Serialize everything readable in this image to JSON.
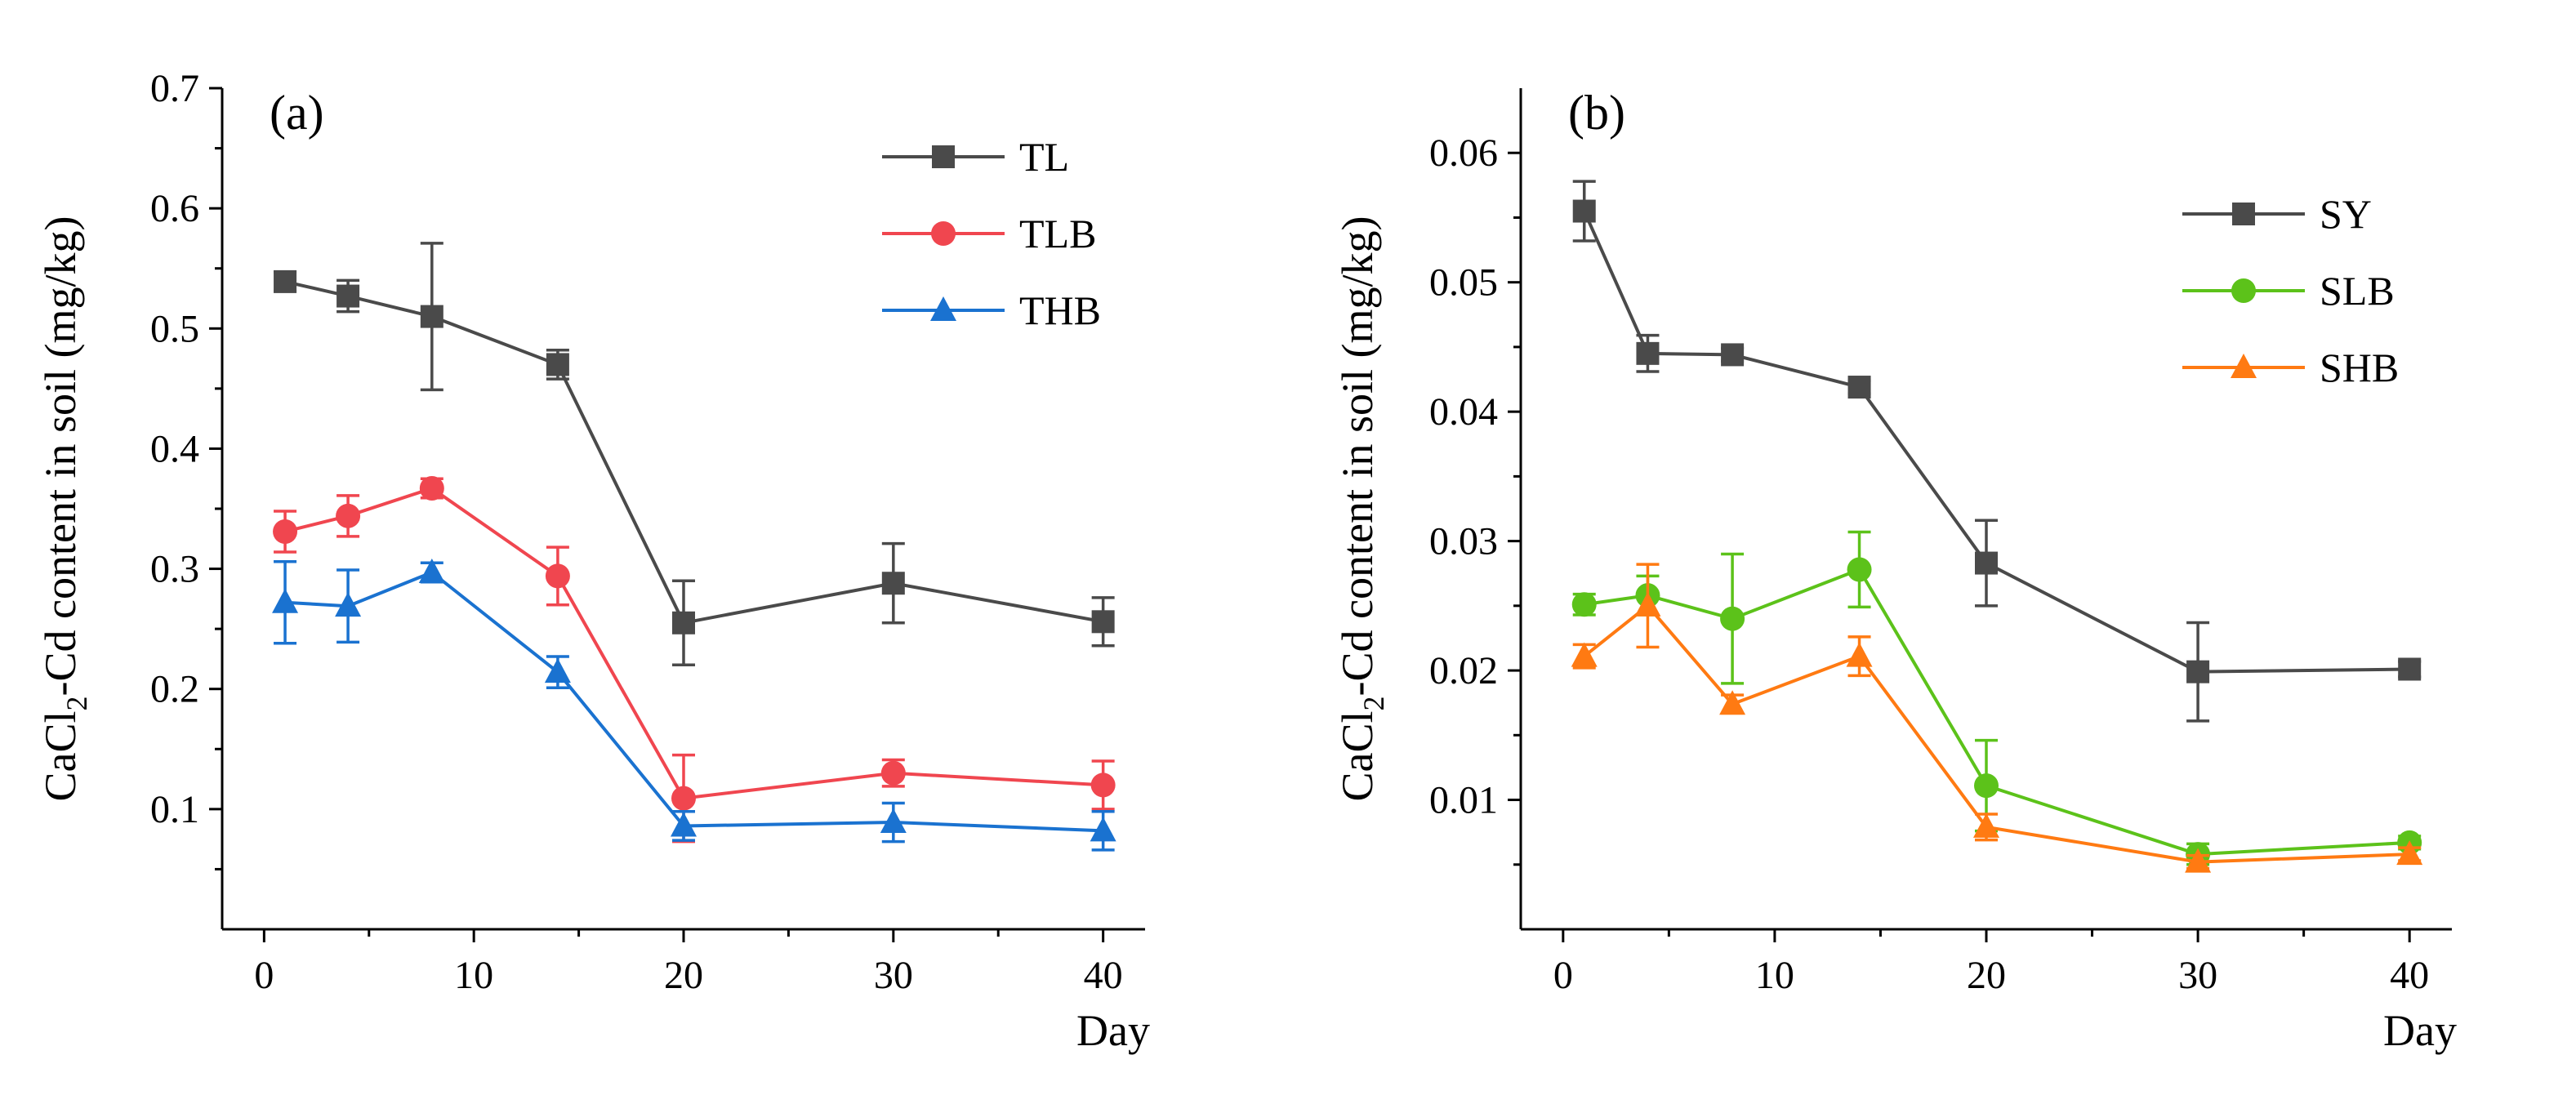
{
  "chart_data": [
    {
      "type": "line",
      "panel": "(a)",
      "xlabel": "Day",
      "ylabel": {
        "pre": "CaCl",
        "sub": "2",
        "post": "-Cd content in soil (mg/kg)"
      },
      "xlim": [
        -2,
        42
      ],
      "ylim": [
        0.0,
        0.7
      ],
      "xticks": [
        0,
        10,
        20,
        30,
        40
      ],
      "yticks": [
        0.1,
        0.2,
        0.3,
        0.4,
        0.5,
        0.6,
        0.7
      ],
      "minor_yticks": [
        0.05,
        0.15,
        0.25,
        0.35,
        0.45,
        0.55,
        0.65
      ],
      "minor_xticks": [
        5,
        15,
        25,
        35
      ],
      "ytick_labels": [
        "0.1",
        "0.2",
        "0.3",
        "0.4",
        "0.5",
        "0.6",
        "0.7"
      ],
      "xtick_labels": [
        "0",
        "10",
        "20",
        "30",
        "40"
      ],
      "legend_position": "top-right",
      "x": [
        1,
        4,
        8,
        14,
        20,
        30,
        40
      ],
      "series": [
        {
          "name": "TL",
          "color": "#4a4a4a",
          "marker": "square",
          "values": [
            0.539,
            0.527,
            0.51,
            0.47,
            0.255,
            0.288,
            0.256
          ],
          "errors": [
            0.008,
            0.013,
            0.061,
            0.012,
            0.035,
            0.033,
            0.02
          ]
        },
        {
          "name": "TLB",
          "color": "#f0464f",
          "marker": "circle",
          "values": [
            0.331,
            0.344,
            0.367,
            0.294,
            0.109,
            0.13,
            0.12
          ],
          "errors": [
            0.017,
            0.017,
            0.008,
            0.024,
            0.036,
            0.011,
            0.02
          ]
        },
        {
          "name": "THB",
          "color": "#1a72d0",
          "marker": "triangle",
          "values": [
            0.272,
            0.269,
            0.297,
            0.214,
            0.086,
            0.089,
            0.082
          ],
          "errors": [
            0.034,
            0.03,
            0.008,
            0.013,
            0.012,
            0.016,
            0.016
          ]
        }
      ]
    },
    {
      "type": "line",
      "panel": "(b)",
      "xlabel": "Day",
      "ylabel": {
        "pre": "CaCl",
        "sub": "2",
        "post": "-Cd content in soil (mg/kg)"
      },
      "xlim": [
        -2,
        42
      ],
      "ylim": [
        0.0,
        0.065
      ],
      "xticks": [
        0,
        10,
        20,
        30,
        40
      ],
      "yticks": [
        0.01,
        0.02,
        0.03,
        0.04,
        0.05,
        0.06
      ],
      "minor_yticks": [
        0.005,
        0.015,
        0.025,
        0.035,
        0.045,
        0.055
      ],
      "minor_xticks": [
        5,
        15,
        25,
        35
      ],
      "ytick_labels": [
        "0.01",
        "0.02",
        "0.03",
        "0.04",
        "0.05",
        "0.06"
      ],
      "xtick_labels": [
        "0",
        "10",
        "20",
        "30",
        "40"
      ],
      "legend_position": "top-right",
      "x": [
        1,
        4,
        8,
        14,
        20,
        30,
        40
      ],
      "series": [
        {
          "name": "SY",
          "color": "#4a4a4a",
          "marker": "square",
          "values": [
            0.0555,
            0.0445,
            0.0444,
            0.0419,
            0.0283,
            0.0199,
            0.0201
          ],
          "errors": [
            0.0023,
            0.0014,
            0.0005,
            0.0005,
            0.0033,
            0.0038,
            0.0006
          ]
        },
        {
          "name": "SLB",
          "color": "#5cc21a",
          "marker": "circle",
          "values": [
            0.0251,
            0.0258,
            0.024,
            0.0278,
            0.0111,
            0.0058,
            0.0067
          ],
          "errors": [
            0.0008,
            0.0015,
            0.005,
            0.0029,
            0.0035,
            0.0008,
            0.0005
          ]
        },
        {
          "name": "SHB",
          "color": "#ff7a12",
          "marker": "triangle",
          "values": [
            0.0211,
            0.025,
            0.0174,
            0.0211,
            0.0079,
            0.0052,
            0.0058
          ],
          "errors": [
            0.0009,
            0.0032,
            0.0007,
            0.0015,
            0.001,
            0.0005,
            0.0005
          ]
        }
      ]
    }
  ]
}
